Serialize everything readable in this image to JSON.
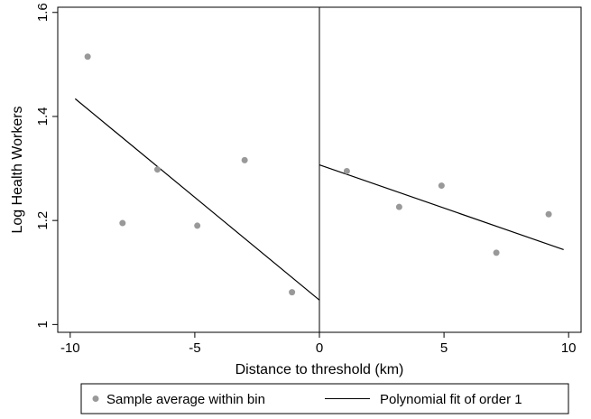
{
  "chart_data": {
    "type": "scatter",
    "xlabel": "Distance to threshold (km)",
    "ylabel": "Log Health Workers",
    "xlim": [
      -10.5,
      10.5
    ],
    "ylim": [
      0.985,
      1.61
    ],
    "xticks": [
      -10,
      -5,
      0,
      5,
      10
    ],
    "yticks": [
      1,
      1.2,
      1.4,
      1.6
    ],
    "xtick_labels": [
      "-10",
      "-5",
      "0",
      "5",
      "10"
    ],
    "ytick_labels": [
      "1",
      "1.2",
      "1.4",
      "1.6"
    ],
    "threshold_x": 0,
    "grid": false,
    "legend": "bottom",
    "series": [
      {
        "name": "Sample average within bin",
        "kind": "scatter",
        "color": "#999999",
        "points": [
          [
            -9.3,
            1.515
          ],
          [
            -7.9,
            1.195
          ],
          [
            -6.5,
            1.298
          ],
          [
            -4.9,
            1.19
          ],
          [
            -3.0,
            1.316
          ],
          [
            -1.1,
            1.062
          ],
          [
            1.1,
            1.295
          ],
          [
            3.2,
            1.226
          ],
          [
            4.9,
            1.267
          ],
          [
            7.1,
            1.138
          ],
          [
            9.2,
            1.212
          ]
        ]
      },
      {
        "name": "Polynomial fit of order 1",
        "kind": "line",
        "color": "#000000",
        "segments": [
          [
            [
              -9.8,
              1.434
            ],
            [
              0,
              1.047
            ]
          ],
          [
            [
              0,
              1.307
            ],
            [
              9.8,
              1.144
            ]
          ]
        ]
      }
    ]
  }
}
